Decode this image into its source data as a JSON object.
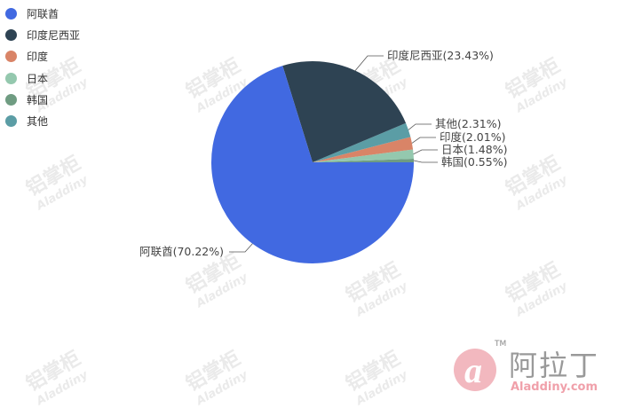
{
  "chart_data": {
    "type": "pie",
    "title": "",
    "legend": "top-left",
    "slices": [
      {
        "name": "阿联酋",
        "value": 70.22,
        "label": "阿联酋(70.22%)",
        "color": "#4169E1"
      },
      {
        "name": "印度尼西亚",
        "value": 23.43,
        "label": "印度尼西亚(23.43%)",
        "color": "#2E4353"
      },
      {
        "name": "印度",
        "value": 2.01,
        "label": "印度(2.01%)",
        "color": "#D98467"
      },
      {
        "name": "日本",
        "value": 1.48,
        "label": "日本(1.48%)",
        "color": "#94C8AE"
      },
      {
        "name": "韩国",
        "value": 0.55,
        "label": "韩国(0.55%)",
        "color": "#6F9C82"
      },
      {
        "name": "其他",
        "value": 2.31,
        "label": "其他(2.31%)",
        "color": "#5B9DA5"
      }
    ]
  },
  "watermark": {
    "text": "铝掌柜",
    "sub": "Aladdiny"
  },
  "logo": {
    "text": "阿拉丁",
    "sub": "Aladdiny.com",
    "tm": "TM"
  }
}
